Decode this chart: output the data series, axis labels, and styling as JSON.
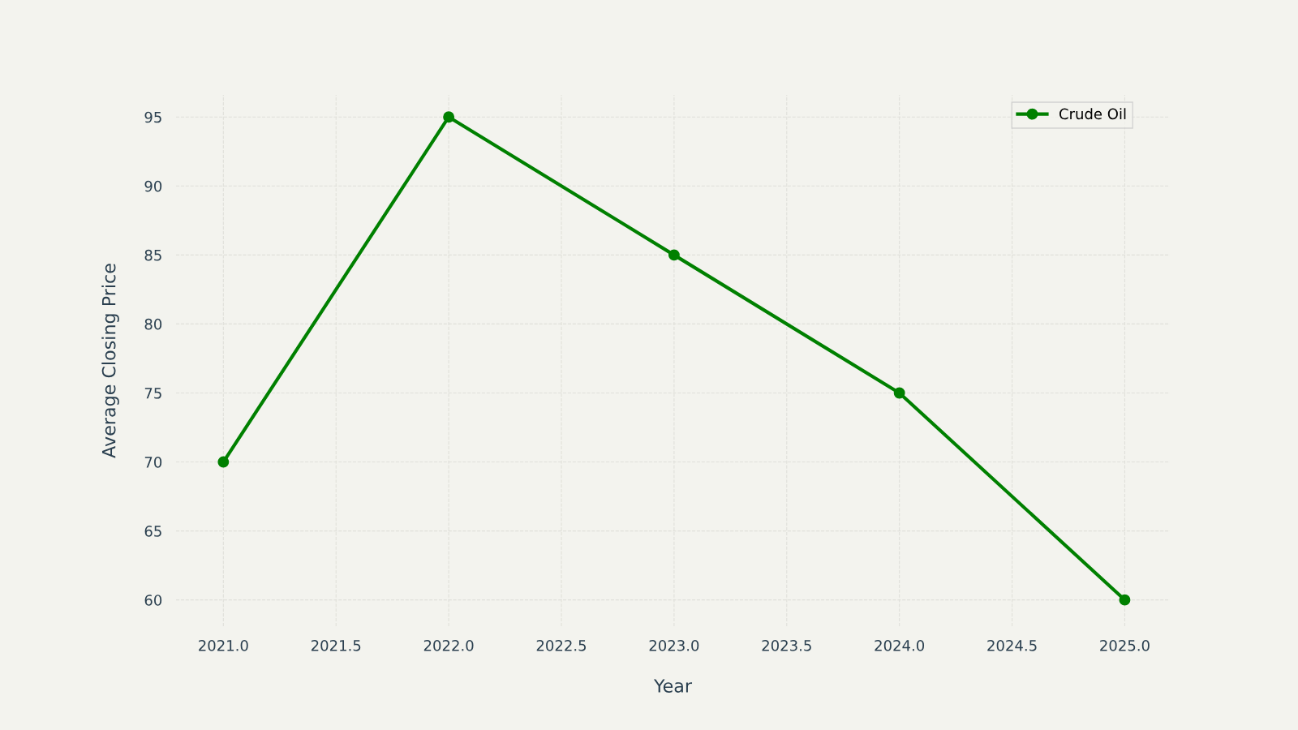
{
  "chart_data": {
    "type": "line",
    "xlabel": "Year",
    "ylabel": "Average Closing Price",
    "x": [
      2021,
      2022,
      2023,
      2024,
      2025
    ],
    "series": [
      {
        "name": "Crude Oil",
        "color": "#008000",
        "values": [
          70,
          95,
          85,
          75,
          60
        ]
      }
    ],
    "xlim": [
      2020.79,
      2025.2
    ],
    "ylim": [
      58.1,
      96.6
    ],
    "xticks": [
      {
        "value": 2021,
        "label": "2021.0"
      },
      {
        "value": 2021.5,
        "label": "2021.5"
      },
      {
        "value": 2022,
        "label": "2022.0"
      },
      {
        "value": 2022.5,
        "label": "2022.5"
      },
      {
        "value": 2023,
        "label": "2023.0"
      },
      {
        "value": 2023.5,
        "label": "2023.5"
      },
      {
        "value": 2024,
        "label": "2024.0"
      },
      {
        "value": 2024.5,
        "label": "2024.5"
      },
      {
        "value": 2025,
        "label": "2025.0"
      }
    ],
    "yticks": [
      60,
      65,
      70,
      75,
      80,
      85,
      90,
      95
    ],
    "grid": true,
    "legend": "top right",
    "marker": "circle",
    "line_style": "solid"
  }
}
